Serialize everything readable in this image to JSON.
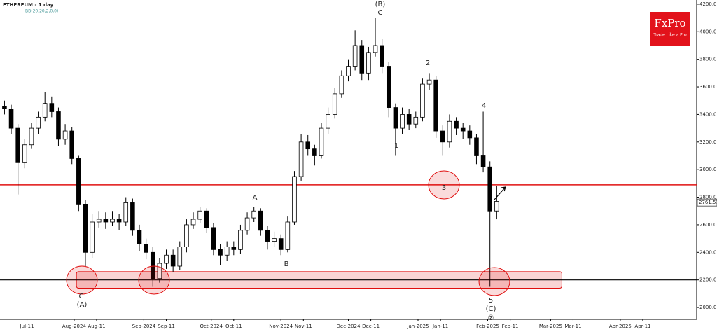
{
  "chart_data": {
    "type": "candlestick",
    "title": "ETHEREUM - 1 day",
    "subtitle": "BB(20,20,2,0,0)",
    "logo": {
      "brand": "FxPro",
      "tagline": "Trade Like a Pro"
    },
    "xlim": [
      -2,
      308
    ],
    "xticks": [
      {
        "value": 10,
        "label": "Jul-11"
      },
      {
        "value": 31,
        "label": "Aug-2024"
      },
      {
        "value": 41,
        "label": "Aug-11"
      },
      {
        "value": 62,
        "label": "Sep-2024"
      },
      {
        "value": 72,
        "label": "Sep-11"
      },
      {
        "value": 92,
        "label": "Oct-2024"
      },
      {
        "value": 102,
        "label": "Oct-11"
      },
      {
        "value": 123,
        "label": "Nov-2024"
      },
      {
        "value": 133,
        "label": "Nov-11"
      },
      {
        "value": 153,
        "label": "Dec-2024"
      },
      {
        "value": 163,
        "label": "Dec-11"
      },
      {
        "value": 184,
        "label": "Jan-2025"
      },
      {
        "value": 194,
        "label": "Jan-11"
      },
      {
        "value": 215,
        "label": "Feb-2025"
      },
      {
        "value": 225,
        "label": "Feb-11"
      },
      {
        "value": 243,
        "label": "Mar-2025"
      },
      {
        "value": 253,
        "label": "Mar-11"
      },
      {
        "value": 274,
        "label": "Apr-2025"
      },
      {
        "value": 284,
        "label": "Apr-11"
      }
    ],
    "ylim": [
      1914,
      4230
    ],
    "yticks": [
      {
        "value": 2000,
        "label": "2000.00"
      },
      {
        "value": 2200,
        "label": "2200.00"
      },
      {
        "value": 2400,
        "label": "2400.00"
      },
      {
        "value": 2600,
        "label": "2600.00"
      },
      {
        "value": 2800,
        "label": "2800.00"
      },
      {
        "value": 3000,
        "label": "3000.00"
      },
      {
        "value": 3200,
        "label": "3200.00"
      },
      {
        "value": 3400,
        "label": "3400.00"
      },
      {
        "value": 3600,
        "label": "3600.00"
      },
      {
        "value": 3800,
        "label": "3800.00"
      },
      {
        "value": 4000,
        "label": "4000.00"
      },
      {
        "value": 4200,
        "label": "4200.00"
      }
    ],
    "last_price": {
      "value": 2761.51,
      "label": "2761.51"
    },
    "resistance": {
      "value": 2890,
      "color": "#e01010"
    },
    "support": {
      "value": 2200,
      "color": "#000000"
    },
    "zone": {
      "low": 2140,
      "high": 2260,
      "x": [
        32,
        248
      ],
      "color": "#e01010"
    },
    "x": [
      0,
      3,
      6,
      9,
      12,
      15,
      18,
      21,
      24,
      27,
      30,
      33,
      36,
      39,
      42,
      45,
      48,
      51,
      54,
      57,
      60,
      63,
      66,
      69,
      72,
      75,
      78,
      81,
      84,
      87,
      90,
      93,
      96,
      99,
      102,
      105,
      108,
      111,
      114,
      117,
      120,
      123,
      126,
      129,
      132,
      135,
      138,
      141,
      144,
      147,
      150,
      153,
      156,
      159,
      162,
      165,
      168,
      171,
      174,
      177,
      180,
      183,
      186,
      189,
      192,
      195,
      198,
      201,
      204,
      207,
      210,
      213,
      216,
      219
    ],
    "open": [
      3460,
      3440,
      3300,
      3050,
      3180,
      3300,
      3380,
      3480,
      3420,
      3220,
      3280,
      3080,
      2750,
      2400,
      2620,
      2640,
      2620,
      2640,
      2620,
      2760,
      2560,
      2460,
      2400,
      2210,
      2320,
      2380,
      2300,
      2440,
      2600,
      2640,
      2700,
      2580,
      2420,
      2380,
      2440,
      2420,
      2560,
      2650,
      2700,
      2560,
      2480,
      2500,
      2420,
      2620,
      2950,
      3200,
      3150,
      3100,
      3300,
      3400,
      3550,
      3680,
      3750,
      3900,
      3700,
      3850,
      3900,
      3750,
      3450,
      3300,
      3400,
      3330,
      3380,
      3620,
      3650,
      3280,
      3200,
      3350,
      3300,
      3280,
      3230,
      3100,
      3020,
      2700
    ],
    "high": [
      3500,
      3470,
      3330,
      3220,
      3340,
      3420,
      3560,
      3530,
      3450,
      3330,
      3310,
      3100,
      2780,
      2680,
      2700,
      2690,
      2700,
      2680,
      2800,
      2790,
      2600,
      2500,
      2440,
      2360,
      2420,
      2420,
      2480,
      2640,
      2690,
      2730,
      2720,
      2610,
      2460,
      2480,
      2480,
      2600,
      2690,
      2730,
      2720,
      2590,
      2550,
      2530,
      2660,
      2990,
      3260,
      3250,
      3180,
      3340,
      3450,
      3590,
      3720,
      3800,
      4010,
      3940,
      3890,
      4100,
      3950,
      3780,
      3480,
      3450,
      3440,
      3420,
      3660,
      3700,
      3680,
      3320,
      3400,
      3380,
      3340,
      3320,
      3260,
      3420,
      3060,
      2880
    ],
    "low": [
      3400,
      3260,
      2820,
      3010,
      3150,
      3260,
      3350,
      3380,
      3170,
      3180,
      3040,
      2700,
      2300,
      2360,
      2580,
      2570,
      2590,
      2560,
      2590,
      2520,
      2410,
      2350,
      2150,
      2180,
      2280,
      2260,
      2270,
      2400,
      2570,
      2610,
      2540,
      2380,
      2310,
      2340,
      2380,
      2390,
      2530,
      2620,
      2520,
      2420,
      2440,
      2380,
      2400,
      2600,
      2920,
      3100,
      3030,
      3080,
      3260,
      3370,
      3520,
      3640,
      3720,
      3650,
      3650,
      3820,
      3700,
      3380,
      3100,
      3260,
      3290,
      3300,
      3350,
      3580,
      3230,
      3100,
      3160,
      3250,
      3220,
      3180,
      3040,
      2980,
      2150,
      2640
    ],
    "close": [
      3440,
      3300,
      3050,
      3180,
      3300,
      3380,
      3480,
      3420,
      3220,
      3280,
      3080,
      2750,
      2400,
      2620,
      2640,
      2620,
      2640,
      2620,
      2760,
      2560,
      2460,
      2400,
      2210,
      2320,
      2380,
      2300,
      2440,
      2600,
      2640,
      2700,
      2580,
      2420,
      2380,
      2440,
      2420,
      2560,
      2650,
      2700,
      2560,
      2480,
      2500,
      2420,
      2620,
      2950,
      3200,
      3150,
      3100,
      3300,
      3400,
      3550,
      3680,
      3750,
      3900,
      3700,
      3850,
      3900,
      3750,
      3450,
      3300,
      3400,
      3330,
      3380,
      3620,
      3650,
      3280,
      3200,
      3350,
      3300,
      3280,
      3230,
      3100,
      3020,
      2700,
      2770
    ],
    "wave_labels": [
      "(B)",
      "C",
      "A",
      "B",
      "C",
      "(A)",
      "1",
      "2",
      "3",
      "4",
      "5",
      "(C)",
      "②"
    ]
  }
}
